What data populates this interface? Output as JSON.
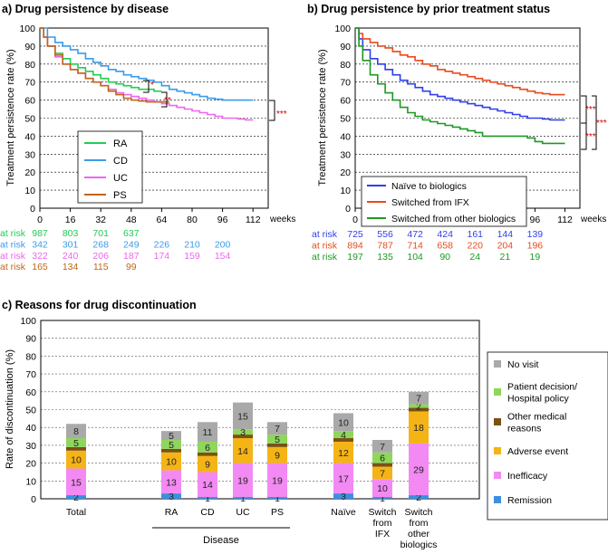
{
  "chart_data": [
    {
      "type": "line",
      "title": "a) Drug persistence by disease",
      "xlabel": "weeks",
      "ylabel": "Treatment persistence rate (%)",
      "xlim": [
        0,
        120
      ],
      "ylim": [
        0,
        100
      ],
      "xticks": [
        0,
        16,
        32,
        48,
        64,
        80,
        96,
        112
      ],
      "yticks": [
        0,
        10,
        20,
        30,
        40,
        50,
        60,
        70,
        80,
        90,
        100
      ],
      "series": [
        {
          "name": "RA",
          "color": "#22cc55",
          "x": [
            0,
            2,
            4,
            8,
            12,
            16,
            20,
            24,
            28,
            32,
            36,
            40,
            44,
            48,
            52,
            56,
            60,
            64
          ],
          "y": [
            100,
            95,
            90,
            86,
            83,
            80,
            78,
            76,
            74,
            72,
            70,
            69,
            68,
            67,
            66,
            66,
            65,
            65
          ]
        },
        {
          "name": "CD",
          "color": "#3b9be8",
          "x": [
            0,
            4,
            8,
            12,
            16,
            20,
            24,
            28,
            32,
            36,
            40,
            44,
            48,
            52,
            56,
            60,
            64,
            68,
            72,
            76,
            80,
            84,
            88,
            92,
            96,
            100,
            104,
            108,
            112
          ],
          "y": [
            100,
            95,
            92,
            90,
            88,
            86,
            83,
            81,
            79,
            77,
            76,
            74,
            73,
            72,
            71,
            70,
            68,
            66,
            65,
            64,
            63,
            62,
            61,
            60.5,
            60,
            60,
            60,
            60,
            60
          ]
        },
        {
          "name": "UC",
          "color": "#ee66ee",
          "x": [
            0,
            2,
            4,
            8,
            12,
            16,
            20,
            24,
            28,
            32,
            36,
            40,
            44,
            48,
            52,
            56,
            60,
            64,
            68,
            72,
            76,
            80,
            84,
            88,
            92,
            96,
            100,
            104,
            108,
            112
          ],
          "y": [
            100,
            95,
            90,
            84,
            80,
            77,
            75,
            72,
            70,
            68,
            66,
            64,
            63,
            62,
            61,
            60,
            59,
            58,
            57,
            56,
            55,
            54,
            53,
            52,
            51,
            50,
            50,
            49.5,
            49,
            49
          ]
        },
        {
          "name": "PS",
          "color": "#c0651a",
          "x": [
            0,
            2,
            4,
            8,
            12,
            16,
            20,
            24,
            28,
            32,
            36,
            40,
            44,
            48,
            52,
            56,
            60,
            64,
            68
          ],
          "y": [
            100,
            95,
            90,
            85,
            80,
            77,
            75,
            72,
            70,
            68,
            65,
            63,
            61,
            60,
            59.5,
            59,
            59,
            59,
            59
          ]
        }
      ],
      "legend": [
        "RA",
        "CD",
        "UC",
        "PS"
      ],
      "legend_position": "lower-middle",
      "significance": [
        "*",
        "**",
        "***"
      ],
      "at_risk": {
        "label": "at risk",
        "rows": [
          {
            "name": "RA",
            "color": "#22cc55",
            "values": [
              987,
              803,
              701,
              637
            ]
          },
          {
            "name": "CD",
            "color": "#3b9be8",
            "values": [
              342,
              301,
              268,
              249,
              226,
              210,
              200
            ]
          },
          {
            "name": "UC",
            "color": "#ee66ee",
            "values": [
              322,
              240,
              206,
              187,
              174,
              159,
              154
            ]
          },
          {
            "name": "PS",
            "color": "#c0651a",
            "values": [
              165,
              134,
              115,
              99
            ]
          }
        ]
      }
    },
    {
      "type": "line",
      "title": "b) Drug persistence by prior treatment status",
      "xlabel": "weeks",
      "ylabel": "Treatment persistence rate (%)",
      "xlim": [
        0,
        120
      ],
      "ylim": [
        0,
        100
      ],
      "xticks": [
        0,
        16,
        32,
        48,
        64,
        80,
        96,
        112
      ],
      "yticks": [
        0,
        10,
        20,
        30,
        40,
        50,
        60,
        70,
        80,
        90,
        100
      ],
      "series": [
        {
          "name": "Naïve to biologics",
          "color": "#2f3fe8",
          "x": [
            0,
            2,
            4,
            8,
            12,
            16,
            20,
            24,
            28,
            32,
            36,
            40,
            44,
            48,
            52,
            56,
            60,
            64,
            68,
            72,
            76,
            80,
            84,
            88,
            92,
            96,
            100,
            104,
            108,
            112
          ],
          "y": [
            100,
            94,
            88,
            83,
            80,
            77,
            74,
            71,
            69,
            67,
            65,
            63,
            62,
            61,
            60,
            59,
            58,
            57,
            56,
            55,
            54,
            53,
            52,
            51,
            50,
            50,
            49.5,
            49,
            49,
            49
          ]
        },
        {
          "name": "Switched from IFX",
          "color": "#e84a1e",
          "x": [
            0,
            2,
            4,
            8,
            12,
            16,
            20,
            24,
            28,
            32,
            36,
            40,
            44,
            48,
            52,
            56,
            60,
            64,
            68,
            72,
            76,
            80,
            84,
            88,
            92,
            96,
            100,
            104,
            108,
            112
          ],
          "y": [
            100,
            97,
            94,
            92,
            90,
            89,
            87,
            85,
            84,
            82,
            80,
            79,
            77,
            76,
            75,
            74,
            73,
            72,
            71,
            70,
            69,
            68,
            67,
            66,
            65,
            64,
            63.5,
            63,
            63,
            63
          ]
        },
        {
          "name": "Switched from other biologics",
          "color": "#1c9a22",
          "x": [
            0,
            2,
            4,
            8,
            12,
            16,
            20,
            24,
            28,
            32,
            36,
            40,
            44,
            48,
            52,
            56,
            60,
            64,
            68,
            72,
            76,
            80,
            84,
            88,
            92,
            96,
            100,
            104,
            108,
            112
          ],
          "y": [
            100,
            90,
            82,
            74,
            69,
            64,
            60,
            56,
            53,
            51,
            49,
            48,
            47,
            46,
            45,
            44,
            43,
            42,
            40,
            40,
            40,
            40,
            40,
            40,
            39,
            37,
            36,
            36,
            36,
            36
          ]
        }
      ],
      "legend": [
        "Naïve to biologics",
        "Switched from IFX",
        "Switched from other biologics"
      ],
      "legend_position": "lower-left",
      "significance": [
        "***",
        "***",
        "***"
      ],
      "at_risk": {
        "label": "at risk",
        "rows": [
          {
            "name": "Naïve to biologics",
            "color": "#2f3fe8",
            "values": [
              725,
              556,
              472,
              424,
              161,
              144,
              139
            ]
          },
          {
            "name": "Switched from IFX",
            "color": "#e84a1e",
            "values": [
              894,
              787,
              714,
              658,
              220,
              204,
              196
            ]
          },
          {
            "name": "Switched from other biologics",
            "color": "#1c9a22",
            "values": [
              197,
              135,
              104,
              90,
              24,
              21,
              19
            ]
          }
        ]
      }
    },
    {
      "type": "bar",
      "stacked": true,
      "title": "c) Reasons for drug discontinuation",
      "ylabel": "Rate of discontinuation (%)",
      "ylim": [
        0,
        100
      ],
      "yticks": [
        0,
        10,
        20,
        30,
        40,
        50,
        60,
        70,
        80,
        90,
        100
      ],
      "categories": [
        "Total",
        "RA",
        "CD",
        "UC",
        "PS",
        "Naïve",
        "Switch from IFX",
        "Switch from other biologics"
      ],
      "category_lines": [
        [
          "Total"
        ],
        [
          "RA"
        ],
        [
          "CD"
        ],
        [
          "UC"
        ],
        [
          "PS"
        ],
        [
          "Naïve"
        ],
        [
          "Switch",
          "from",
          "IFX"
        ],
        [
          "Switch",
          "from",
          "other",
          "biologics"
        ]
      ],
      "groups": [
        {
          "label": "Disease",
          "categories": [
            "RA",
            "CD",
            "UC",
            "PS"
          ]
        }
      ],
      "series": [
        {
          "name": "Remission",
          "color": "#3d8fe0",
          "values": [
            2,
            3,
            1,
            1,
            1,
            3,
            1,
            2
          ]
        },
        {
          "name": "Inefficacy",
          "color": "#f38af3",
          "values": [
            15,
            13,
            14,
            19,
            19,
            17,
            10,
            29
          ]
        },
        {
          "name": "Adverse event",
          "color": "#f5b416",
          "values": [
            10,
            10,
            9,
            14,
            9,
            12,
            7,
            18
          ]
        },
        {
          "name": "Other medical reasons",
          "color": "#7a5214",
          "values": [
            2,
            2,
            2,
            2,
            2,
            2,
            2,
            2
          ]
        },
        {
          "name": "Patient decision/ Hospital policy",
          "color": "#8fd65c",
          "values": [
            5,
            5,
            6,
            3,
            5,
            4,
            6,
            2
          ]
        },
        {
          "name": "No visit",
          "color": "#a9a9a9",
          "values": [
            8,
            5,
            11,
            15,
            7,
            10,
            7,
            7
          ]
        }
      ],
      "legend": [
        "No visit",
        "Patient decision/ Hospital policy",
        "Other medical reasons",
        "Adverse event",
        "Inefficacy",
        "Remission"
      ],
      "legend_lines": [
        [
          "No visit"
        ],
        [
          "Patient decision/",
          "Hospital policy"
        ],
        [
          "Other medical",
          "reasons"
        ],
        [
          "Adverse event"
        ],
        [
          "Inefficacy"
        ],
        [
          "Remission"
        ]
      ],
      "legend_position": "right"
    }
  ]
}
